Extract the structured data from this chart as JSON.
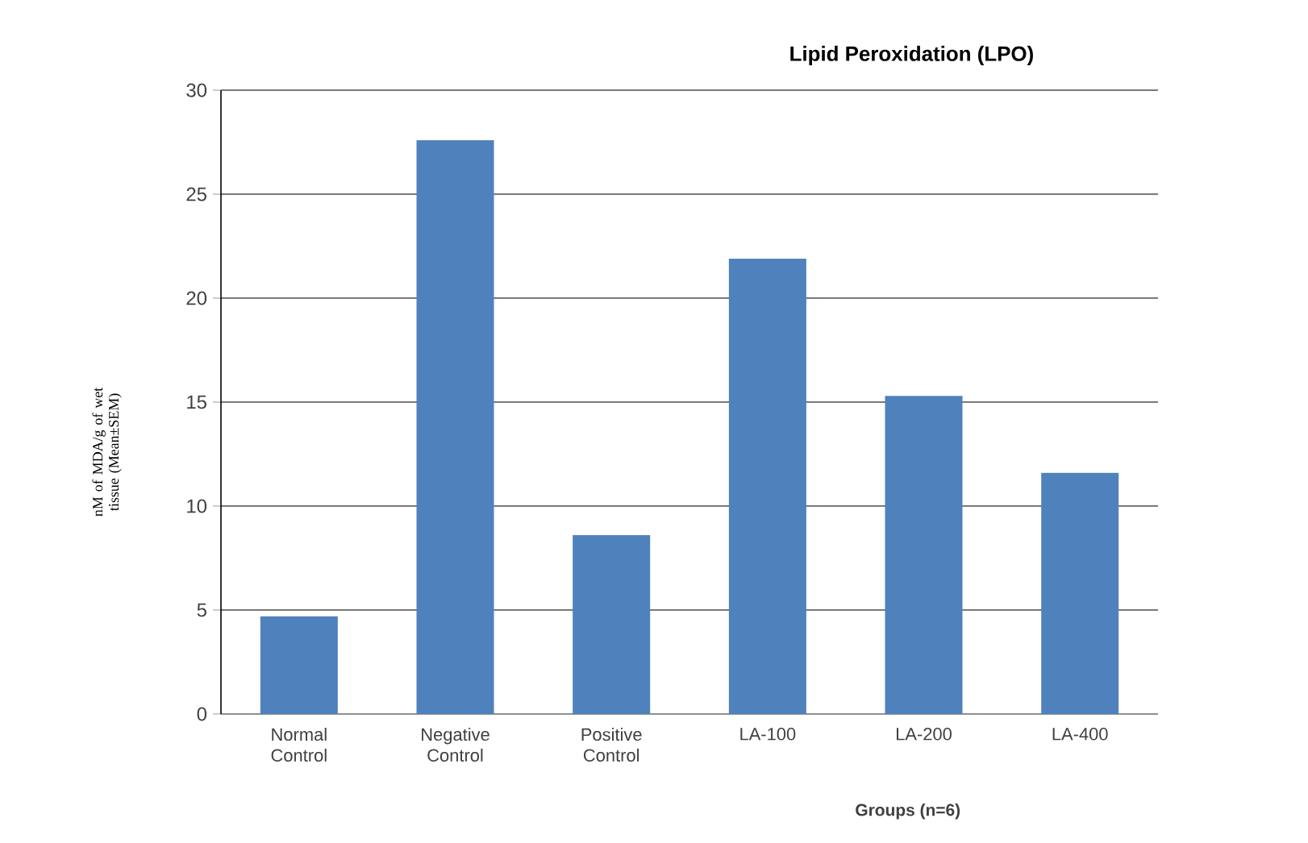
{
  "chart_data": {
    "type": "bar",
    "title": "Lipid Peroxidation (LPO)",
    "xlabel": "Groups (n=6)",
    "ylabel": "nM of MDA/g of wet tissue (Mean±SEM)",
    "categories": [
      "Normal Control",
      "Negative Control",
      "Positive Control",
      "LA-100",
      "LA-200",
      "LA-400"
    ],
    "values": [
      4.7,
      27.6,
      8.6,
      21.9,
      15.3,
      11.6
    ],
    "color": "#4f81bd",
    "ylim": [
      0,
      30
    ],
    "yticks": [
      0,
      5,
      10,
      15,
      20,
      25,
      30
    ],
    "grid": "y"
  }
}
